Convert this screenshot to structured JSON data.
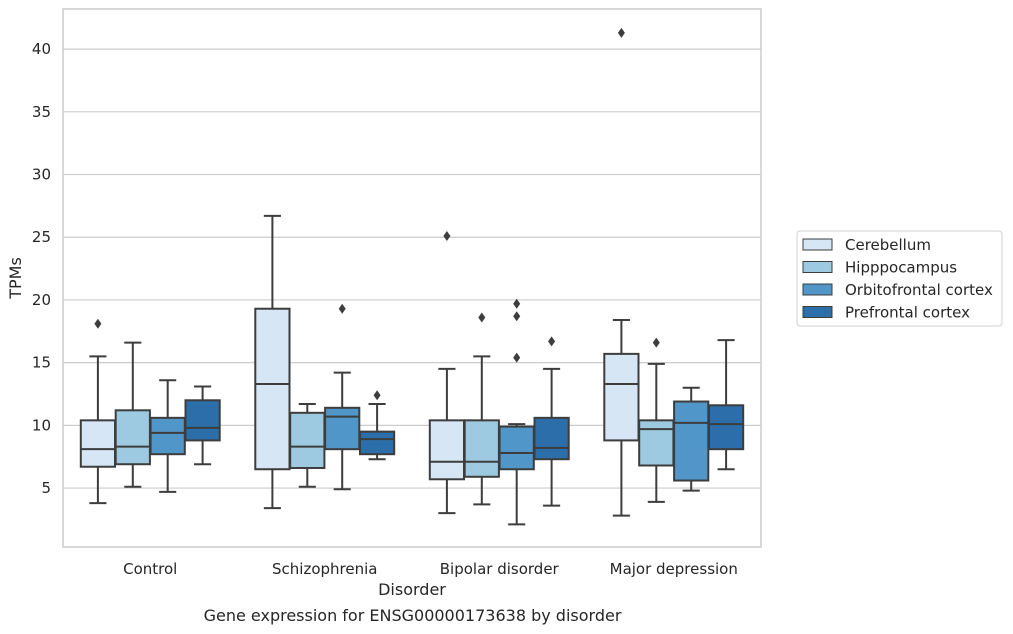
{
  "caption": "Gene expression for ENSG00000173638 by disorder",
  "chart_data": {
    "type": "box",
    "xlabel": "Disorder",
    "ylabel": "TPMs",
    "ylim": [
      0.3,
      43.2
    ],
    "yticks": [
      5,
      10,
      15,
      20,
      25,
      30,
      35,
      40
    ],
    "grid": "horizontal",
    "legend_position": "right",
    "categories": [
      "Control",
      "Schizophrenia",
      "Bipolar disorder",
      "Major depression"
    ],
    "series": [
      {
        "name": "Cerebellum",
        "color": "#d6e6f4",
        "boxes": [
          {
            "whislo": 3.8,
            "q1": 6.7,
            "med": 8.1,
            "q3": 10.4,
            "whishi": 15.5,
            "fliers": [
              18.1
            ]
          },
          {
            "whislo": 3.4,
            "q1": 6.5,
            "med": 13.3,
            "q3": 19.3,
            "whishi": 26.7,
            "fliers": []
          },
          {
            "whislo": 3.0,
            "q1": 5.7,
            "med": 7.1,
            "q3": 10.4,
            "whishi": 14.5,
            "fliers": [
              25.1
            ]
          },
          {
            "whislo": 2.8,
            "q1": 8.8,
            "med": 13.3,
            "q3": 15.7,
            "whishi": 18.4,
            "fliers": [
              41.3
            ]
          }
        ]
      },
      {
        "name": "Hipppocampus",
        "color": "#9ecae1",
        "boxes": [
          {
            "whislo": 5.1,
            "q1": 6.9,
            "med": 8.3,
            "q3": 11.2,
            "whishi": 16.6,
            "fliers": []
          },
          {
            "whislo": 5.1,
            "q1": 6.6,
            "med": 8.3,
            "q3": 11.0,
            "whishi": 11.7,
            "fliers": []
          },
          {
            "whislo": 3.7,
            "q1": 5.9,
            "med": 7.1,
            "q3": 10.4,
            "whishi": 15.5,
            "fliers": [
              18.6
            ]
          },
          {
            "whislo": 3.9,
            "q1": 6.8,
            "med": 9.7,
            "q3": 10.4,
            "whishi": 14.9,
            "fliers": [
              16.6
            ]
          }
        ]
      },
      {
        "name": "Orbitofrontal cortex",
        "color": "#5096c8",
        "boxes": [
          {
            "whislo": 4.7,
            "q1": 7.7,
            "med": 9.4,
            "q3": 10.6,
            "whishi": 13.6,
            "fliers": []
          },
          {
            "whislo": 4.9,
            "q1": 8.1,
            "med": 10.7,
            "q3": 11.4,
            "whishi": 14.2,
            "fliers": [
              19.3
            ]
          },
          {
            "whislo": 2.1,
            "q1": 6.5,
            "med": 7.8,
            "q3": 9.9,
            "whishi": 10.1,
            "fliers": [
              15.4,
              18.7,
              19.7
            ]
          },
          {
            "whislo": 4.8,
            "q1": 5.6,
            "med": 10.2,
            "q3": 11.9,
            "whishi": 13.0,
            "fliers": []
          }
        ]
      },
      {
        "name": "Prefrontal cortex",
        "color": "#2b6ea9",
        "boxes": [
          {
            "whislo": 6.9,
            "q1": 8.8,
            "med": 9.8,
            "q3": 12.0,
            "whishi": 13.1,
            "fliers": []
          },
          {
            "whislo": 7.3,
            "q1": 7.7,
            "med": 8.9,
            "q3": 9.5,
            "whishi": 11.7,
            "fliers": [
              12.4
            ]
          },
          {
            "whislo": 3.6,
            "q1": 7.3,
            "med": 8.2,
            "q3": 10.6,
            "whishi": 14.5,
            "fliers": [
              16.7
            ]
          },
          {
            "whislo": 6.5,
            "q1": 8.1,
            "med": 10.1,
            "q3": 11.6,
            "whishi": 16.8,
            "fliers": []
          }
        ]
      }
    ]
  }
}
